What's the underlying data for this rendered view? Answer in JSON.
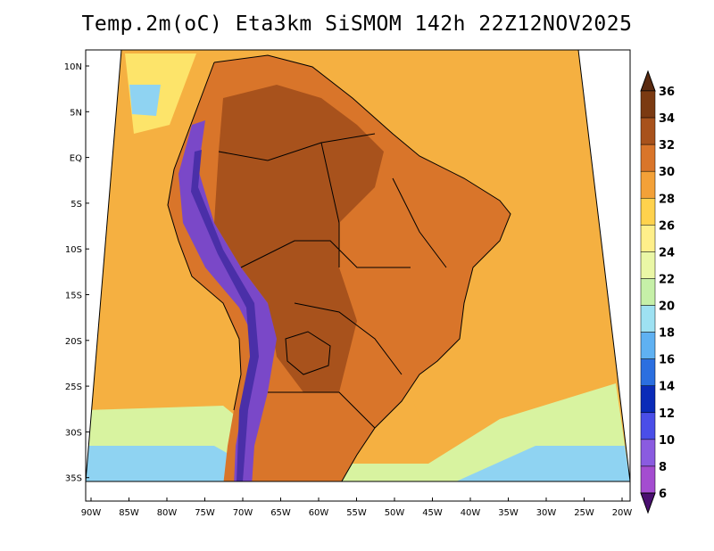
{
  "title": "Temp.2m(oC) Eta3km SiSMOM 142h 22Z12NOV2025",
  "latitude_labels": [
    "10N",
    "5N",
    "EQ",
    "5S",
    "10S",
    "15S",
    "20S",
    "25S",
    "30S",
    "35S"
  ],
  "longitude_labels": [
    "90W",
    "85W",
    "80W",
    "75W",
    "70W",
    "65W",
    "60W",
    "55W",
    "50W",
    "45W",
    "40W",
    "35W",
    "30W",
    "25W",
    "20W"
  ],
  "colorbar": {
    "labels": [
      "36",
      "34",
      "32",
      "30",
      "28",
      "26",
      "24",
      "22",
      "20",
      "18",
      "16",
      "14",
      "12",
      "10",
      "8",
      "6"
    ],
    "colors": [
      "#5a2a10",
      "#7b3a12",
      "#a8521c",
      "#d9752a",
      "#f3a138",
      "#ffd24d",
      "#ffef8a",
      "#eaf7a6",
      "#c6f0a8",
      "#9ee1f2",
      "#5fb1f2",
      "#2b6fe0",
      "#0a2bb8",
      "#4a4ee8",
      "#8a5be0",
      "#a44cd0",
      "#6a1fa0"
    ],
    "low_color": "#4a0f70"
  },
  "map_colors": {
    "ocean_warm": "#f5b041",
    "ocean_mild": "#fde46a",
    "ocean_cool": "#d8f3a0",
    "ocean_cold": "#8fd3f2",
    "land_hot": "#d9752a",
    "land_very_hot": "#a8521c",
    "andes": "#7a48c8",
    "andes_snow": "#4a2fa8",
    "border": "#000000"
  }
}
